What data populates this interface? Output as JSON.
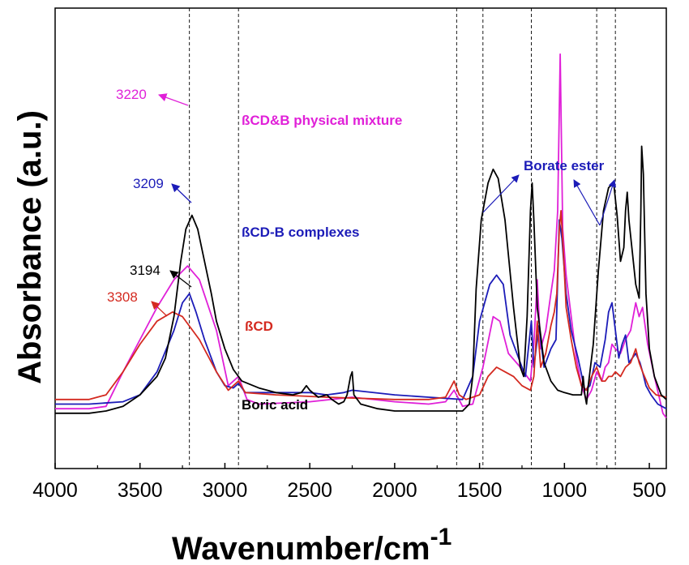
{
  "chart_data": {
    "type": "line",
    "xlabel": "Wavenumber/cm",
    "xlabel_sup": "-1",
    "ylabel": "Absorbance (a.u.)",
    "xlim": [
      4000,
      400
    ],
    "x_ticks": [
      "4000",
      "3500",
      "3000",
      "2500",
      "2000",
      "1500",
      "1000",
      "500"
    ],
    "x_tick_values": [
      4000,
      3500,
      3000,
      2500,
      2000,
      1500,
      1000,
      500
    ],
    "y_ticks_shown": false,
    "vertical_reference_lines": [
      3209,
      2920,
      1635,
      1480,
      1195,
      810,
      700
    ],
    "series": [
      {
        "name": "ßCD&B physical mixture",
        "color": "#e020d8",
        "peak_label": "3220",
        "points": [
          [
            4000,
            0.13
          ],
          [
            3800,
            0.13
          ],
          [
            3700,
            0.135
          ],
          [
            3600,
            0.21
          ],
          [
            3500,
            0.28
          ],
          [
            3400,
            0.35
          ],
          [
            3300,
            0.41
          ],
          [
            3220,
            0.44
          ],
          [
            3150,
            0.41
          ],
          [
            3050,
            0.3
          ],
          [
            2980,
            0.18
          ],
          [
            2920,
            0.2
          ],
          [
            2870,
            0.15
          ],
          [
            2800,
            0.14
          ],
          [
            2500,
            0.145
          ],
          [
            2250,
            0.155
          ],
          [
            2000,
            0.145
          ],
          [
            1800,
            0.14
          ],
          [
            1700,
            0.145
          ],
          [
            1650,
            0.17
          ],
          [
            1600,
            0.135
          ],
          [
            1540,
            0.14
          ],
          [
            1480,
            0.22
          ],
          [
            1420,
            0.33
          ],
          [
            1380,
            0.32
          ],
          [
            1330,
            0.25
          ],
          [
            1260,
            0.22
          ],
          [
            1200,
            0.19
          ],
          [
            1180,
            0.27
          ],
          [
            1160,
            0.41
          ],
          [
            1140,
            0.26
          ],
          [
            1110,
            0.3
          ],
          [
            1080,
            0.38
          ],
          [
            1060,
            0.43
          ],
          [
            1040,
            0.56
          ],
          [
            1025,
            0.9
          ],
          [
            1010,
            0.52
          ],
          [
            990,
            0.42
          ],
          [
            960,
            0.33
          ],
          [
            930,
            0.24
          ],
          [
            900,
            0.18
          ],
          [
            870,
            0.15
          ],
          [
            840,
            0.17
          ],
          [
            810,
            0.21
          ],
          [
            780,
            0.19
          ],
          [
            760,
            0.22
          ],
          [
            740,
            0.23
          ],
          [
            720,
            0.27
          ],
          [
            700,
            0.26
          ],
          [
            670,
            0.25
          ],
          [
            640,
            0.28
          ],
          [
            610,
            0.3
          ],
          [
            580,
            0.36
          ],
          [
            560,
            0.33
          ],
          [
            540,
            0.35
          ],
          [
            510,
            0.27
          ],
          [
            470,
            0.2
          ],
          [
            420,
            0.12
          ],
          [
            400,
            0.11
          ]
        ]
      },
      {
        "name": "ßCD-B complexes",
        "color": "#1c1cb8",
        "peak_label": "3209",
        "points": [
          [
            4000,
            0.14
          ],
          [
            3800,
            0.14
          ],
          [
            3600,
            0.145
          ],
          [
            3500,
            0.16
          ],
          [
            3400,
            0.21
          ],
          [
            3300,
            0.3
          ],
          [
            3250,
            0.36
          ],
          [
            3209,
            0.38
          ],
          [
            3170,
            0.34
          ],
          [
            3120,
            0.28
          ],
          [
            3050,
            0.21
          ],
          [
            3000,
            0.18
          ],
          [
            2950,
            0.175
          ],
          [
            2920,
            0.185
          ],
          [
            2880,
            0.165
          ],
          [
            2500,
            0.165
          ],
          [
            2400,
            0.16
          ],
          [
            2300,
            0.165
          ],
          [
            2250,
            0.17
          ],
          [
            2000,
            0.16
          ],
          [
            1800,
            0.155
          ],
          [
            1600,
            0.15
          ],
          [
            1540,
            0.2
          ],
          [
            1500,
            0.32
          ],
          [
            1470,
            0.36
          ],
          [
            1440,
            0.4
          ],
          [
            1400,
            0.42
          ],
          [
            1360,
            0.4
          ],
          [
            1320,
            0.29
          ],
          [
            1280,
            0.25
          ],
          [
            1230,
            0.2
          ],
          [
            1195,
            0.32
          ],
          [
            1180,
            0.22
          ],
          [
            1150,
            0.31
          ],
          [
            1120,
            0.22
          ],
          [
            1080,
            0.26
          ],
          [
            1050,
            0.28
          ],
          [
            1030,
            0.54
          ],
          [
            1015,
            0.5
          ],
          [
            990,
            0.38
          ],
          [
            960,
            0.3
          ],
          [
            920,
            0.24
          ],
          [
            880,
            0.17
          ],
          [
            850,
            0.18
          ],
          [
            820,
            0.23
          ],
          [
            790,
            0.22
          ],
          [
            760,
            0.28
          ],
          [
            740,
            0.34
          ],
          [
            720,
            0.36
          ],
          [
            700,
            0.3
          ],
          [
            680,
            0.24
          ],
          [
            660,
            0.27
          ],
          [
            640,
            0.29
          ],
          [
            620,
            0.23
          ],
          [
            600,
            0.24
          ],
          [
            580,
            0.25
          ],
          [
            555,
            0.23
          ],
          [
            540,
            0.21
          ],
          [
            520,
            0.18
          ],
          [
            490,
            0.16
          ],
          [
            450,
            0.14
          ],
          [
            400,
            0.13
          ]
        ]
      },
      {
        "name": "ßCD",
        "color": "#d42a20",
        "peak_label": "3308",
        "points": [
          [
            4000,
            0.15
          ],
          [
            3800,
            0.15
          ],
          [
            3700,
            0.16
          ],
          [
            3600,
            0.21
          ],
          [
            3500,
            0.27
          ],
          [
            3400,
            0.32
          ],
          [
            3308,
            0.34
          ],
          [
            3250,
            0.33
          ],
          [
            3150,
            0.28
          ],
          [
            3050,
            0.21
          ],
          [
            2980,
            0.17
          ],
          [
            2920,
            0.19
          ],
          [
            2880,
            0.165
          ],
          [
            2700,
            0.16
          ],
          [
            2400,
            0.155
          ],
          [
            2000,
            0.15
          ],
          [
            1800,
            0.15
          ],
          [
            1700,
            0.155
          ],
          [
            1650,
            0.19
          ],
          [
            1620,
            0.16
          ],
          [
            1580,
            0.15
          ],
          [
            1500,
            0.16
          ],
          [
            1450,
            0.2
          ],
          [
            1400,
            0.22
          ],
          [
            1350,
            0.21
          ],
          [
            1300,
            0.2
          ],
          [
            1250,
            0.18
          ],
          [
            1200,
            0.17
          ],
          [
            1180,
            0.2
          ],
          [
            1160,
            0.32
          ],
          [
            1140,
            0.22
          ],
          [
            1110,
            0.25
          ],
          [
            1080,
            0.31
          ],
          [
            1060,
            0.34
          ],
          [
            1045,
            0.38
          ],
          [
            1030,
            0.52
          ],
          [
            1020,
            0.56
          ],
          [
            1005,
            0.46
          ],
          [
            990,
            0.35
          ],
          [
            960,
            0.28
          ],
          [
            930,
            0.22
          ],
          [
            900,
            0.18
          ],
          [
            870,
            0.17
          ],
          [
            840,
            0.2
          ],
          [
            810,
            0.22
          ],
          [
            780,
            0.19
          ],
          [
            760,
            0.19
          ],
          [
            740,
            0.2
          ],
          [
            720,
            0.2
          ],
          [
            700,
            0.21
          ],
          [
            670,
            0.2
          ],
          [
            640,
            0.22
          ],
          [
            610,
            0.23
          ],
          [
            580,
            0.26
          ],
          [
            560,
            0.23
          ],
          [
            540,
            0.21
          ],
          [
            500,
            0.175
          ],
          [
            460,
            0.16
          ],
          [
            400,
            0.155
          ]
        ]
      },
      {
        "name": "Boric acid",
        "color": "#000000",
        "peak_label": "3194",
        "points": [
          [
            4000,
            0.12
          ],
          [
            3800,
            0.12
          ],
          [
            3700,
            0.125
          ],
          [
            3600,
            0.135
          ],
          [
            3500,
            0.16
          ],
          [
            3400,
            0.2
          ],
          [
            3350,
            0.24
          ],
          [
            3300,
            0.33
          ],
          [
            3260,
            0.45
          ],
          [
            3230,
            0.52
          ],
          [
            3194,
            0.55
          ],
          [
            3160,
            0.52
          ],
          [
            3120,
            0.45
          ],
          [
            3080,
            0.38
          ],
          [
            3050,
            0.32
          ],
          [
            3000,
            0.26
          ],
          [
            2950,
            0.215
          ],
          [
            2900,
            0.19
          ],
          [
            2800,
            0.175
          ],
          [
            2700,
            0.165
          ],
          [
            2600,
            0.16
          ],
          [
            2550,
            0.165
          ],
          [
            2520,
            0.18
          ],
          [
            2500,
            0.17
          ],
          [
            2450,
            0.155
          ],
          [
            2400,
            0.16
          ],
          [
            2370,
            0.15
          ],
          [
            2330,
            0.14
          ],
          [
            2300,
            0.145
          ],
          [
            2280,
            0.16
          ],
          [
            2260,
            0.2
          ],
          [
            2250,
            0.21
          ],
          [
            2240,
            0.16
          ],
          [
            2200,
            0.14
          ],
          [
            2100,
            0.13
          ],
          [
            2000,
            0.125
          ],
          [
            1800,
            0.125
          ],
          [
            1600,
            0.125
          ],
          [
            1560,
            0.14
          ],
          [
            1540,
            0.2
          ],
          [
            1520,
            0.39
          ],
          [
            1490,
            0.54
          ],
          [
            1450,
            0.62
          ],
          [
            1420,
            0.65
          ],
          [
            1390,
            0.63
          ],
          [
            1350,
            0.54
          ],
          [
            1300,
            0.35
          ],
          [
            1260,
            0.22
          ],
          [
            1240,
            0.2
          ],
          [
            1220,
            0.33
          ],
          [
            1200,
            0.56
          ],
          [
            1190,
            0.62
          ],
          [
            1180,
            0.54
          ],
          [
            1160,
            0.35
          ],
          [
            1120,
            0.23
          ],
          [
            1080,
            0.19
          ],
          [
            1040,
            0.17
          ],
          [
            1000,
            0.165
          ],
          [
            950,
            0.16
          ],
          [
            900,
            0.16
          ],
          [
            890,
            0.2
          ],
          [
            880,
            0.16
          ],
          [
            870,
            0.14
          ],
          [
            860,
            0.18
          ],
          [
            830,
            0.27
          ],
          [
            800,
            0.43
          ],
          [
            770,
            0.56
          ],
          [
            740,
            0.61
          ],
          [
            710,
            0.62
          ],
          [
            690,
            0.55
          ],
          [
            670,
            0.45
          ],
          [
            650,
            0.48
          ],
          [
            640,
            0.56
          ],
          [
            630,
            0.6
          ],
          [
            620,
            0.54
          ],
          [
            600,
            0.47
          ],
          [
            580,
            0.4
          ],
          [
            560,
            0.37
          ],
          [
            550,
            0.56
          ],
          [
            545,
            0.7
          ],
          [
            535,
            0.64
          ],
          [
            520,
            0.38
          ],
          [
            500,
            0.26
          ],
          [
            470,
            0.2
          ],
          [
            430,
            0.16
          ],
          [
            400,
            0.15
          ]
        ]
      }
    ],
    "annotations": {
      "borate_ester_label": "Borate ester"
    }
  }
}
